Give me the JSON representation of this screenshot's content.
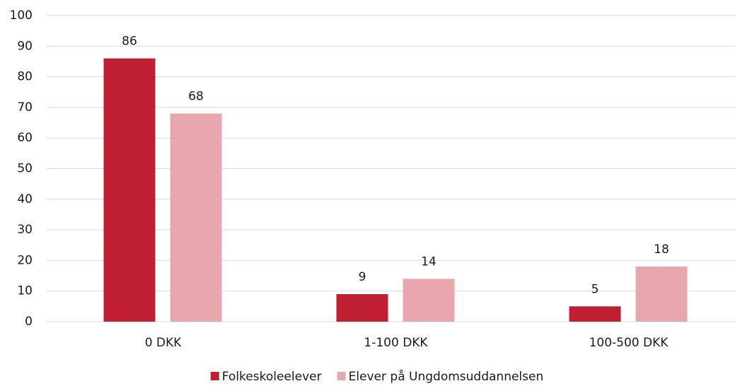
{
  "chart_data": {
    "type": "bar",
    "categories": [
      "0 DKK",
      "1-100 DKK",
      "100-500 DKK"
    ],
    "series": [
      {
        "name": "Folkeskoleelever",
        "color": "#c01f32",
        "values": [
          86,
          9,
          5
        ]
      },
      {
        "name": "Elever på Ungdomsuddannelsen",
        "color": "#e8a7ad",
        "values": [
          68,
          14,
          18
        ]
      }
    ],
    "ylim": [
      0,
      100
    ],
    "yticks": [
      0,
      10,
      20,
      30,
      40,
      50,
      60,
      70,
      80,
      90,
      100
    ],
    "grid": true,
    "legend": "bottom"
  }
}
